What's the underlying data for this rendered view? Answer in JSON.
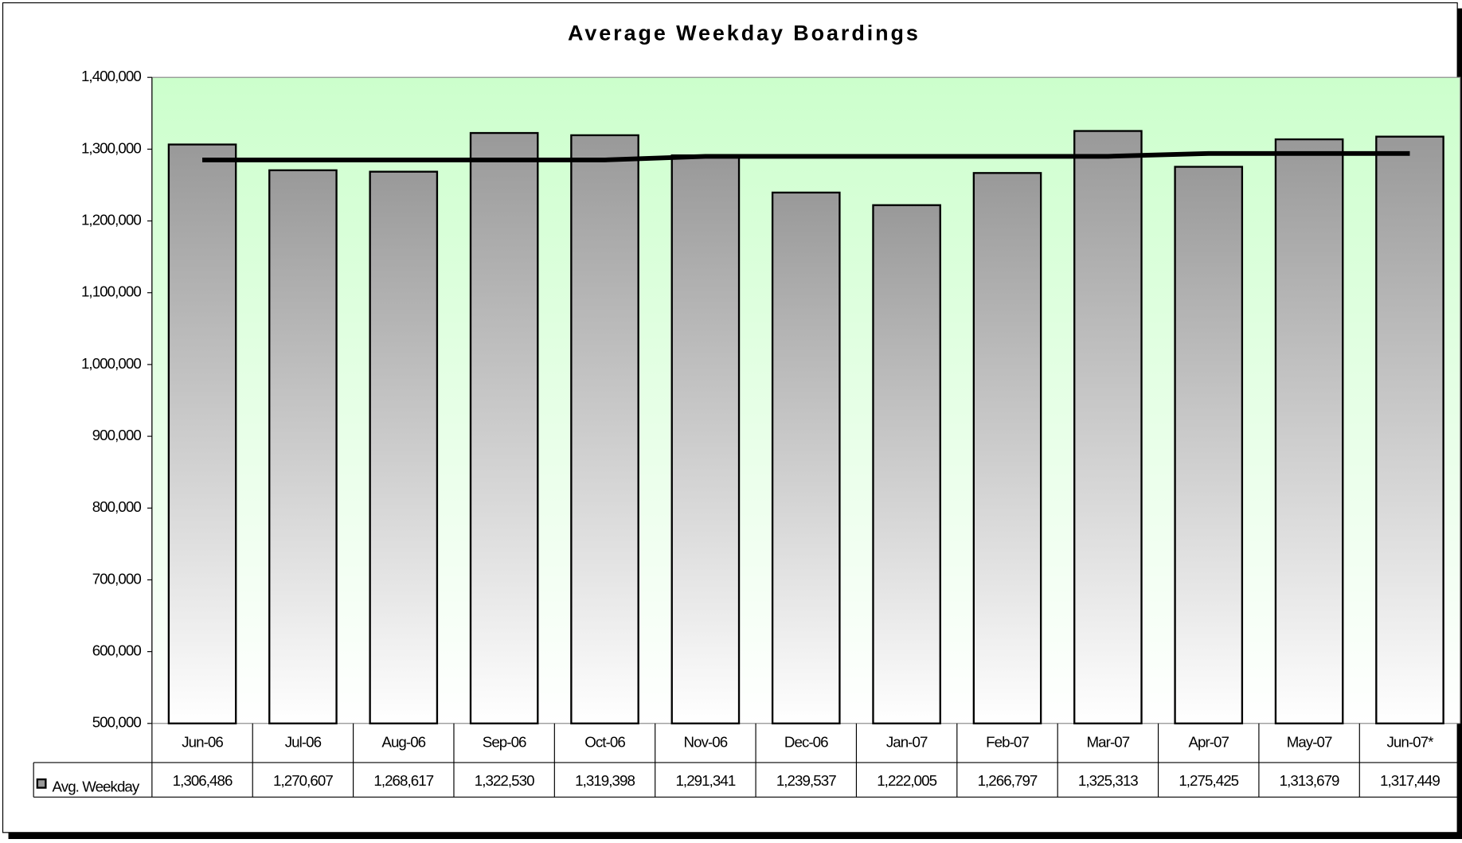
{
  "chart_data": {
    "type": "bar",
    "title": "Average Weekday Boardings",
    "categories": [
      "Jun-06",
      "Jul-06",
      "Aug-06",
      "Sep-06",
      "Oct-06",
      "Nov-06",
      "Dec-06",
      "Jan-07",
      "Feb-07",
      "Mar-07",
      "Apr-07",
      "May-07",
      "Jun-07*"
    ],
    "series": [
      {
        "name": "Avg. Weekday",
        "type": "bar",
        "color": "#999999",
        "values": [
          1306486,
          1270607,
          1268617,
          1322530,
          1319398,
          1291341,
          1239537,
          1222005,
          1266797,
          1325313,
          1275425,
          1313679,
          1317449
        ],
        "value_labels": [
          "1,306,486",
          "1,270,607",
          "1,268,617",
          "1,322,530",
          "1,319,398",
          "1,291,341",
          "1,239,537",
          "1,222,005",
          "1,266,797",
          "1,325,313",
          "1,275,425",
          "1,313,679",
          "1,317,449"
        ]
      },
      {
        "type": "line",
        "color": "#000000",
        "values": [
          1285000,
          1285000,
          1285000,
          1285000,
          1285000,
          1290000,
          1290000,
          1290000,
          1290000,
          1290000,
          1294000,
          1294000,
          1294000
        ]
      }
    ],
    "ylim": [
      500000,
      1400000
    ],
    "yticks": [
      {
        "value": 500000,
        "label": "500,000"
      },
      {
        "value": 600000,
        "label": "600,000"
      },
      {
        "value": 700000,
        "label": "700,000"
      },
      {
        "value": 800000,
        "label": "800,000"
      },
      {
        "value": 900000,
        "label": "900,000"
      },
      {
        "value": 1000000,
        "label": "1,000,000"
      },
      {
        "value": 1100000,
        "label": "1,100,000"
      },
      {
        "value": 1200000,
        "label": "1,200,000"
      },
      {
        "value": 1300000,
        "label": "1,300,000"
      },
      {
        "value": 1400000,
        "label": "1,400,000"
      }
    ],
    "grid": false,
    "data_table": true
  }
}
